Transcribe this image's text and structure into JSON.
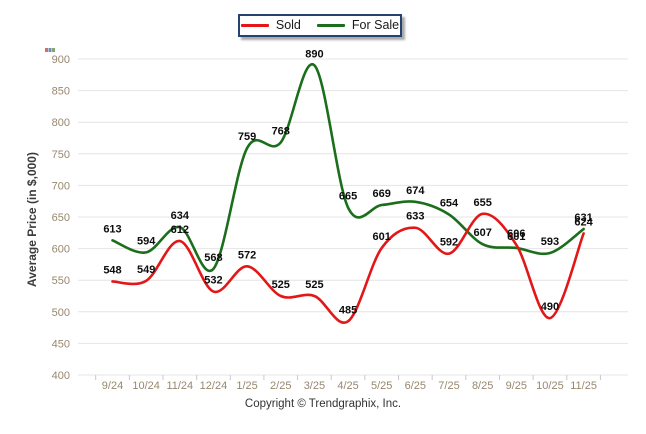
{
  "legend": {
    "items": [
      {
        "label": "Sold"
      },
      {
        "label": "For Sale"
      }
    ]
  },
  "footer": {
    "copyright": "Copyright © Trendgraphix, Inc."
  },
  "chart_data": {
    "type": "line",
    "title": "",
    "categories": [
      "9/24",
      "10/24",
      "11/24",
      "12/24",
      "1/25",
      "2/25",
      "3/25",
      "4/25",
      "5/25",
      "6/25",
      "7/25",
      "8/25",
      "9/25",
      "10/25",
      "11/25"
    ],
    "series": [
      {
        "name": "Sold",
        "color": "#e31717",
        "values": [
          548,
          549,
          612,
          532,
          572,
          525,
          525,
          485,
          601,
          633,
          592,
          655,
          606,
          490,
          624
        ]
      },
      {
        "name": "For Sale",
        "color": "#1b6e1b",
        "values": [
          613,
          594,
          634,
          568,
          759,
          768,
          890,
          665,
          669,
          674,
          654,
          607,
          601,
          593,
          631
        ]
      }
    ],
    "xlabel": "",
    "ylabel": "Average Price (in $,000)",
    "ylim": [
      400,
      900
    ],
    "yticks": [
      400,
      450,
      500,
      550,
      600,
      650,
      700,
      750,
      800,
      850,
      900
    ],
    "grid": "horizontal",
    "legend_position": "top-center",
    "point_labels": true
  },
  "colors": {
    "grid": "#e4e4e4",
    "tick_mark": "#c9c9c9",
    "tick_text": "#98876e",
    "data_label": "#0d0d0d",
    "legend_border": "#25436e",
    "axis_title": "#3c3c3c",
    "copyright": "#323232"
  }
}
